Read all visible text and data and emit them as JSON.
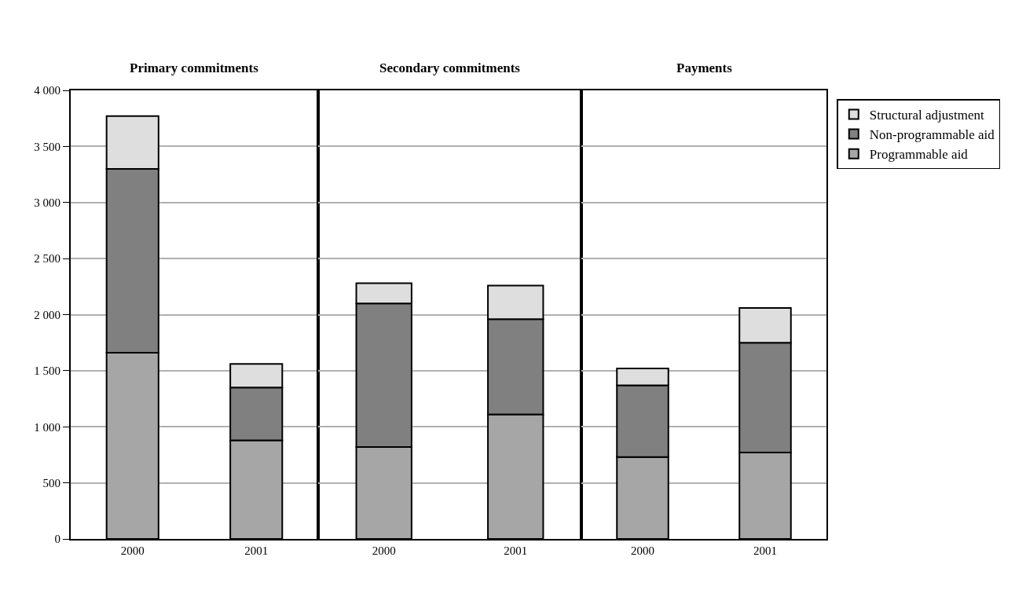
{
  "chart_data": [
    {
      "type": "bar",
      "title": "Primary commitments",
      "categories": [
        "2000",
        "2001"
      ],
      "stacked": true,
      "grid": "y",
      "legend": "top right",
      "ylim": [
        0,
        4000
      ],
      "yticks": [
        {
          "value": 0,
          "label": "0"
        },
        {
          "value": 500,
          "label": "500"
        },
        {
          "value": 1000,
          "label": "1 000"
        },
        {
          "value": 1500,
          "label": "1 500"
        },
        {
          "value": 2000,
          "label": "2 000"
        },
        {
          "value": 2500,
          "label": "2 500"
        },
        {
          "value": 3000,
          "label": "3 000"
        },
        {
          "value": 3500,
          "label": "3 500"
        },
        {
          "value": 4000,
          "label": "4 000"
        }
      ],
      "series": [
        {
          "name": "Programmable aid",
          "color": "#a6a6a6",
          "values": [
            1660,
            880
          ]
        },
        {
          "name": "Non-programmable aid",
          "color": "#808080",
          "values": [
            1640,
            470
          ]
        },
        {
          "name": "Structural adjustment",
          "color": "#dedede",
          "values": [
            470,
            210
          ]
        }
      ]
    },
    {
      "type": "bar",
      "title": "Secondary commitments",
      "categories": [
        "2000",
        "2001"
      ],
      "stacked": true,
      "grid": "y",
      "tick_labels": "x",
      "ylim": [
        0,
        4000
      ],
      "yticks": [
        {
          "value": 0,
          "label": null
        },
        {
          "value": 500,
          "label": null
        },
        {
          "value": 1000,
          "label": null
        },
        {
          "value": 1500,
          "label": null
        },
        {
          "value": 2000,
          "label": null
        },
        {
          "value": 2500,
          "label": null
        },
        {
          "value": 3000,
          "label": null
        },
        {
          "value": 3500,
          "label": null
        },
        {
          "value": 4000,
          "label": null
        }
      ],
      "series": [
        {
          "color": "#a6a6a6",
          "values": [
            820,
            1110
          ]
        },
        {
          "color": "#808080",
          "values": [
            1280,
            850
          ]
        },
        {
          "color": "#dedede",
          "values": [
            180,
            300
          ]
        }
      ]
    },
    {
      "type": "bar",
      "title": "Payments",
      "categories": [
        "2000",
        "2001"
      ],
      "stacked": true,
      "grid": "y",
      "tick_labels": "x",
      "ylim": [
        0,
        4000
      ],
      "yticks": [
        {
          "value": 0,
          "label": null
        },
        {
          "value": 500,
          "label": null
        },
        {
          "value": 1000,
          "label": null
        },
        {
          "value": 1500,
          "label": null
        },
        {
          "value": 2000,
          "label": null
        },
        {
          "value": 2500,
          "label": null
        },
        {
          "value": 3000,
          "label": null
        },
        {
          "value": 3500,
          "label": null
        },
        {
          "value": 4000,
          "label": null
        }
      ],
      "series": [
        {
          "color": "#a6a6a6",
          "values": [
            730,
            770
          ]
        },
        {
          "color": "#808080",
          "values": [
            640,
            980
          ]
        },
        {
          "color": "#dedede",
          "values": [
            150,
            310
          ]
        }
      ]
    }
  ]
}
